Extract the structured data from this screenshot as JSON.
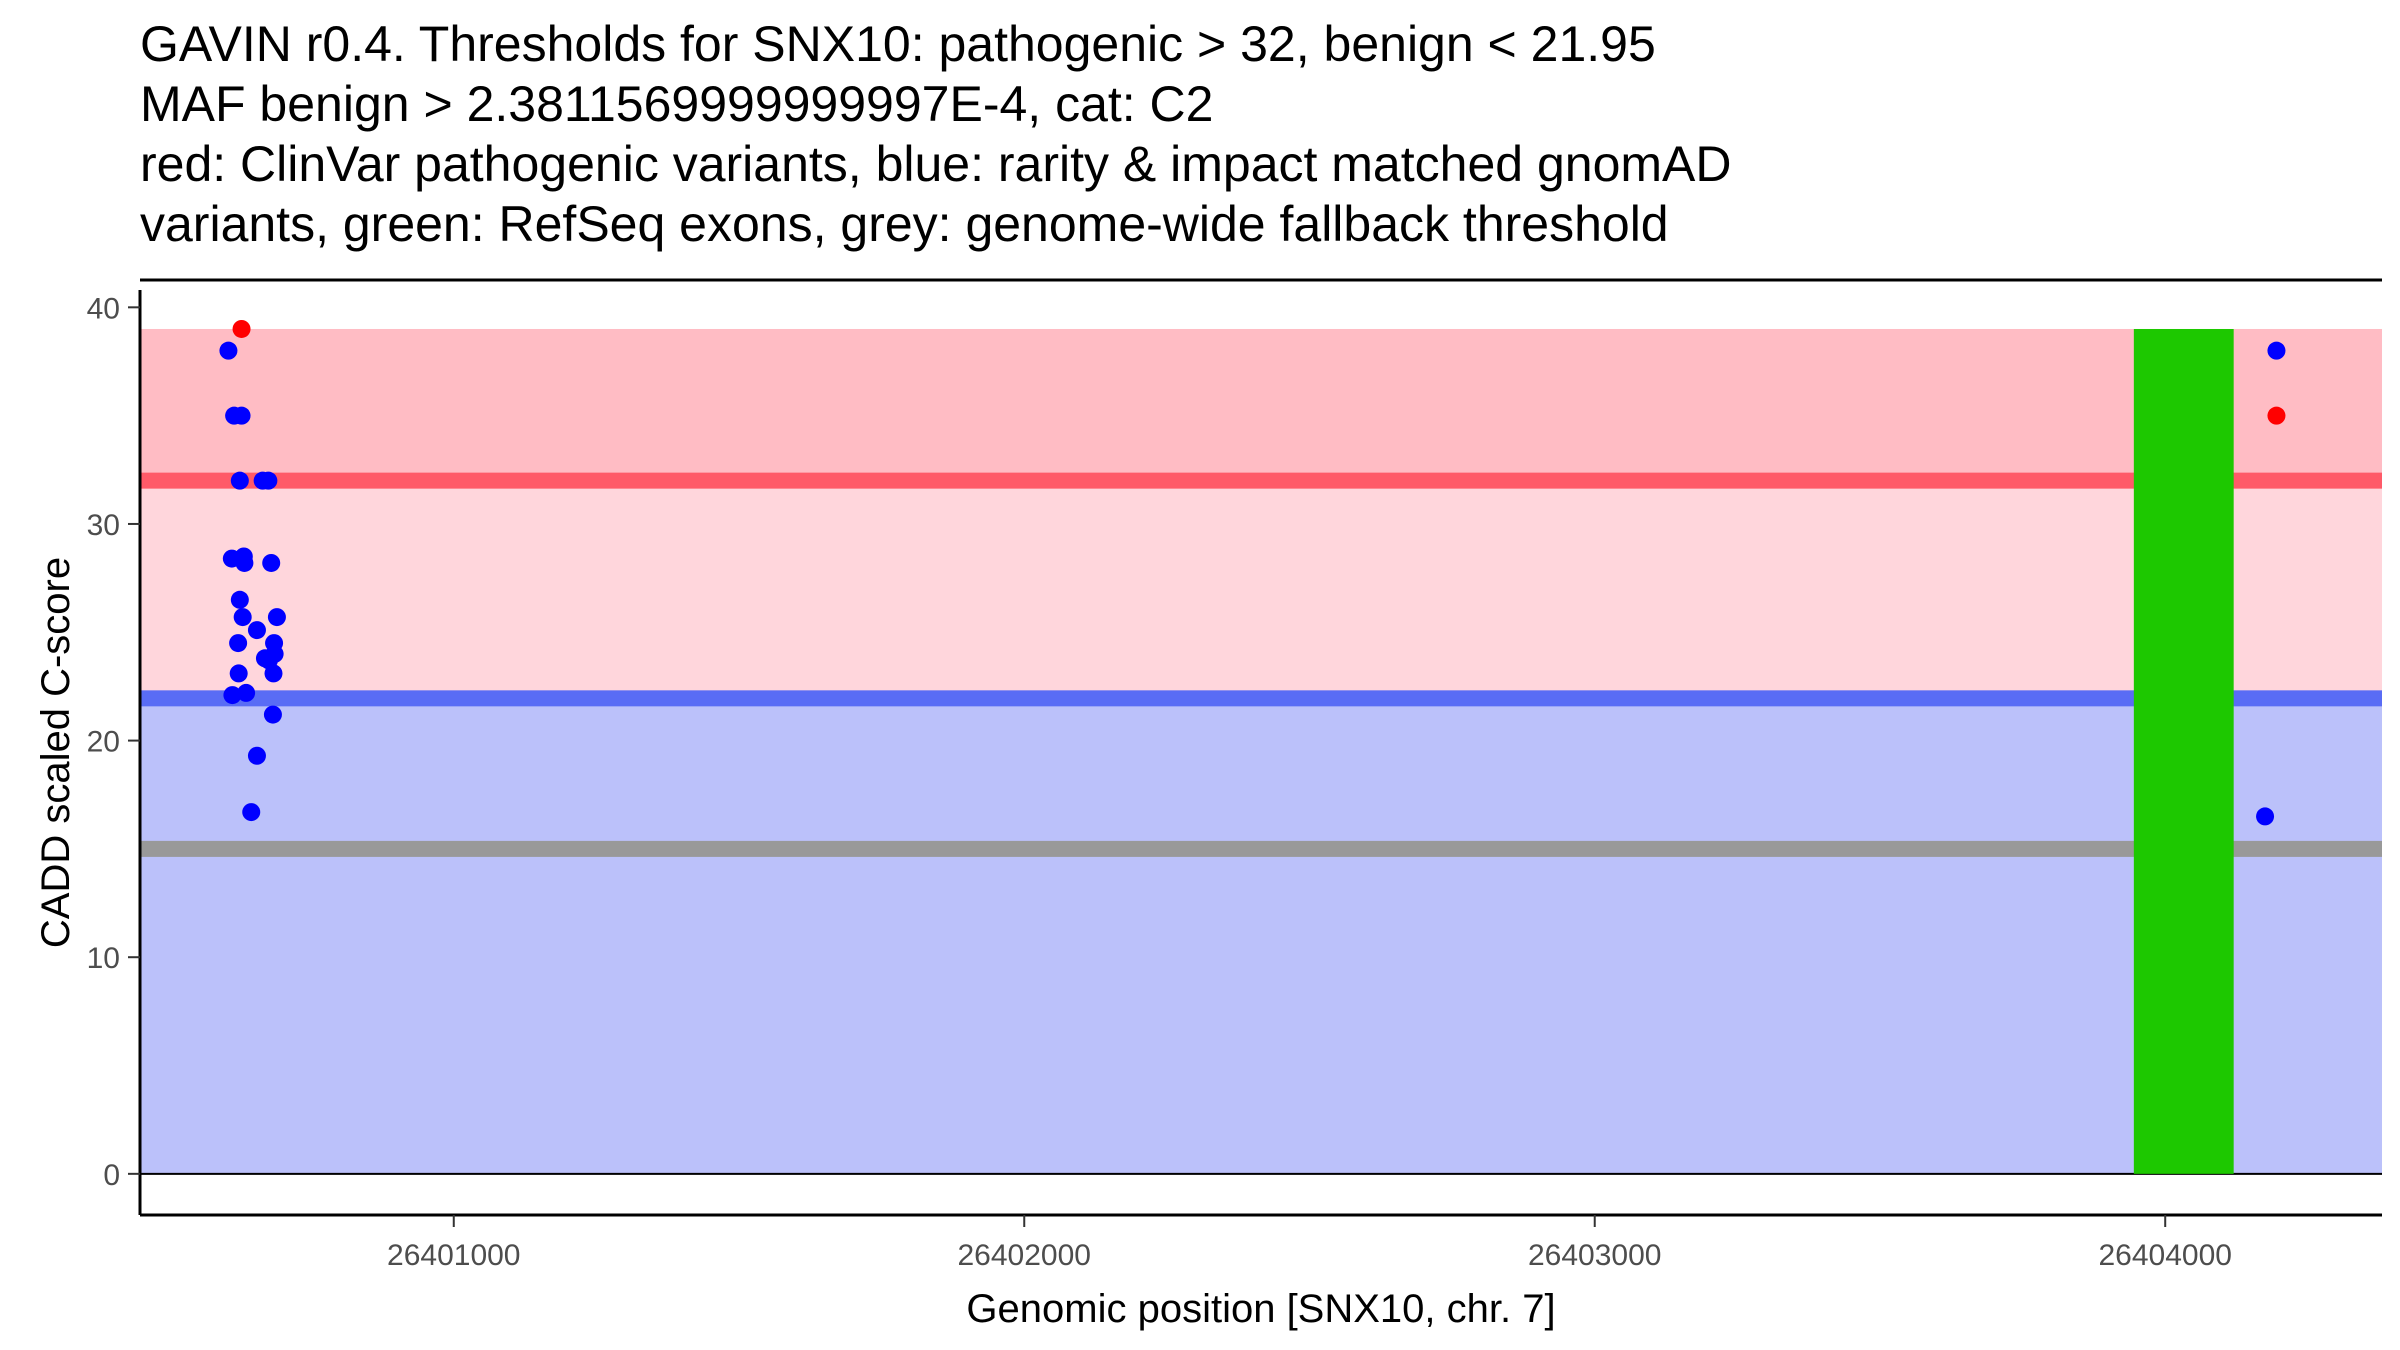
{
  "chart_data": {
    "type": "scatter",
    "title_lines": [
      "GAVIN r0.4. Thresholds for SNX10: pathogenic > 32, benign < 21.95",
      "MAF benign > 2.3811569999999997E-4, cat: C2",
      "red: ClinVar pathogenic variants, blue: rarity & impact matched gnomAD",
      "variants, green: RefSeq exons, grey: genome-wide fallback threshold"
    ],
    "xlabel": "Genomic position [SNX10, chr. 7]",
    "ylabel": "CADD scaled C-score",
    "xlim": [
      26400450,
      26404380
    ],
    "ylim": [
      -1.9,
      40.8
    ],
    "x_ticks": [
      26401000,
      26402000,
      26403000,
      26404000
    ],
    "x_tick_labels": [
      "26401000",
      "26402000",
      "26403000",
      "26404000"
    ],
    "y_ticks": [
      0,
      10,
      20,
      30,
      40
    ],
    "y_tick_labels": [
      "0",
      "10",
      "20",
      "30",
      "40"
    ],
    "grid": false,
    "thresholds": {
      "pathogenic": 32,
      "benign": 21.95,
      "fallback": 15,
      "max_score": 39
    },
    "colors": {
      "pathogenic_region": "#ffd6dc",
      "pathogenic_top_region": "#ffbcc4",
      "benign_region": "#bbc1fa",
      "pathogenic_line": "#ff5a68",
      "benign_line": "#596cf5",
      "fallback_line": "#999999",
      "exon": "#1dc800",
      "clinvar_point": "#ff0000",
      "gnomad_point": "#0000ff"
    },
    "exons": [
      {
        "start": 26403945,
        "end": 26404120
      }
    ],
    "series": [
      {
        "name": "ClinVar pathogenic",
        "points": [
          {
            "x": 26400628,
            "y": 39.0
          },
          {
            "x": 26404195,
            "y": 35.0
          }
        ]
      },
      {
        "name": "gnomAD matched",
        "points": [
          {
            "x": 26400605,
            "y": 38.0
          },
          {
            "x": 26400615,
            "y": 35.0
          },
          {
            "x": 26400628,
            "y": 35.0
          },
          {
            "x": 26400625,
            "y": 32.0
          },
          {
            "x": 26400665,
            "y": 32.0
          },
          {
            "x": 26400675,
            "y": 32.0
          },
          {
            "x": 26400611,
            "y": 28.4
          },
          {
            "x": 26400632,
            "y": 28.5
          },
          {
            "x": 26400633,
            "y": 28.2
          },
          {
            "x": 26400680,
            "y": 28.2
          },
          {
            "x": 26400625,
            "y": 26.5
          },
          {
            "x": 26400630,
            "y": 25.7
          },
          {
            "x": 26400690,
            "y": 25.7
          },
          {
            "x": 26400655,
            "y": 25.1
          },
          {
            "x": 26400622,
            "y": 24.5
          },
          {
            "x": 26400685,
            "y": 24.5
          },
          {
            "x": 26400686,
            "y": 24.0
          },
          {
            "x": 26400669,
            "y": 23.8
          },
          {
            "x": 26400676,
            "y": 23.7
          },
          {
            "x": 26400623,
            "y": 23.1
          },
          {
            "x": 26400684,
            "y": 23.1
          },
          {
            "x": 26400612,
            "y": 22.1
          },
          {
            "x": 26400636,
            "y": 22.2
          },
          {
            "x": 26400683,
            "y": 21.2
          },
          {
            "x": 26400655,
            "y": 19.3
          },
          {
            "x": 26400645,
            "y": 16.7
          },
          {
            "x": 26404195,
            "y": 38.0
          },
          {
            "x": 26404175,
            "y": 16.5
          }
        ]
      }
    ]
  }
}
